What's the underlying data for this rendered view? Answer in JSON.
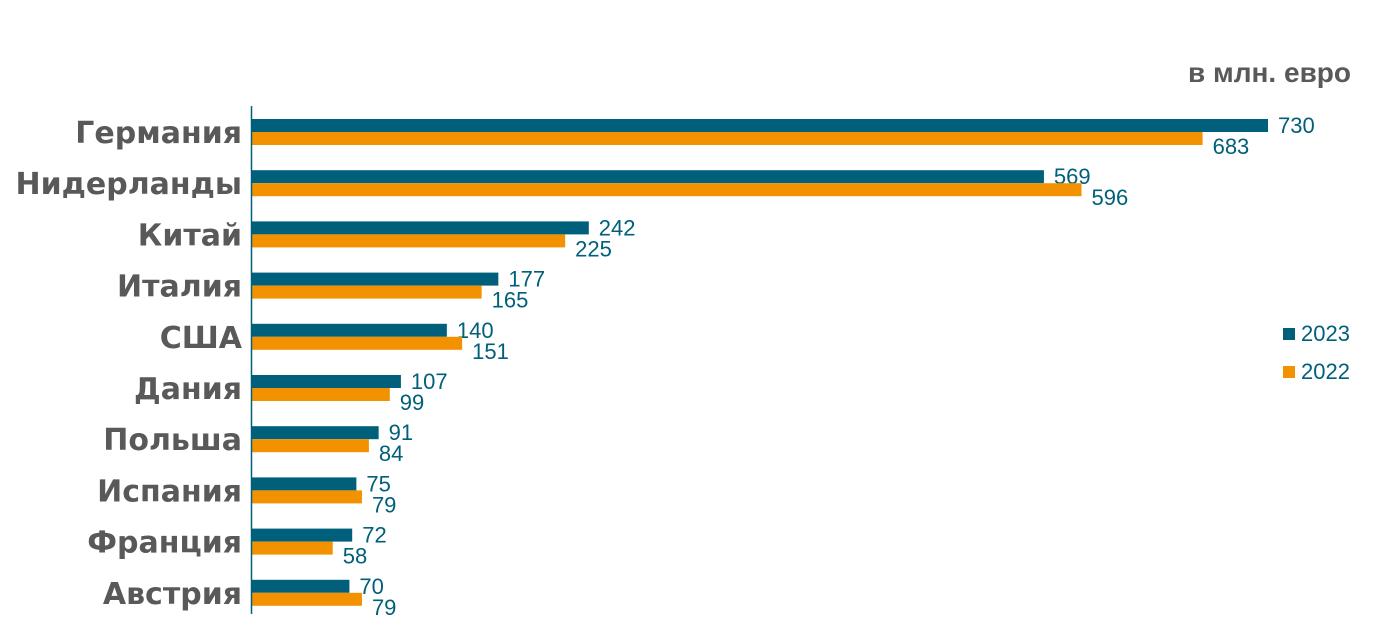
{
  "chart_data": {
    "type": "bar",
    "orientation": "horizontal",
    "unit": "в млн. евро",
    "categories": [
      "Германия",
      "Нидерланды",
      "Китай",
      "Италия",
      "США",
      "Дания",
      "Польша",
      "Испания",
      "Франция",
      "Австрия"
    ],
    "series": [
      {
        "name": "2023",
        "color": "#005f7a",
        "values": [
          730,
          569,
          242,
          177,
          140,
          107,
          91,
          75,
          72,
          70
        ]
      },
      {
        "name": "2022",
        "color": "#f39200",
        "values": [
          683,
          596,
          225,
          165,
          151,
          99,
          84,
          79,
          58,
          79
        ]
      }
    ],
    "xlim": [
      0,
      730
    ],
    "grid": false,
    "legend": "right",
    "data_labels": true
  }
}
